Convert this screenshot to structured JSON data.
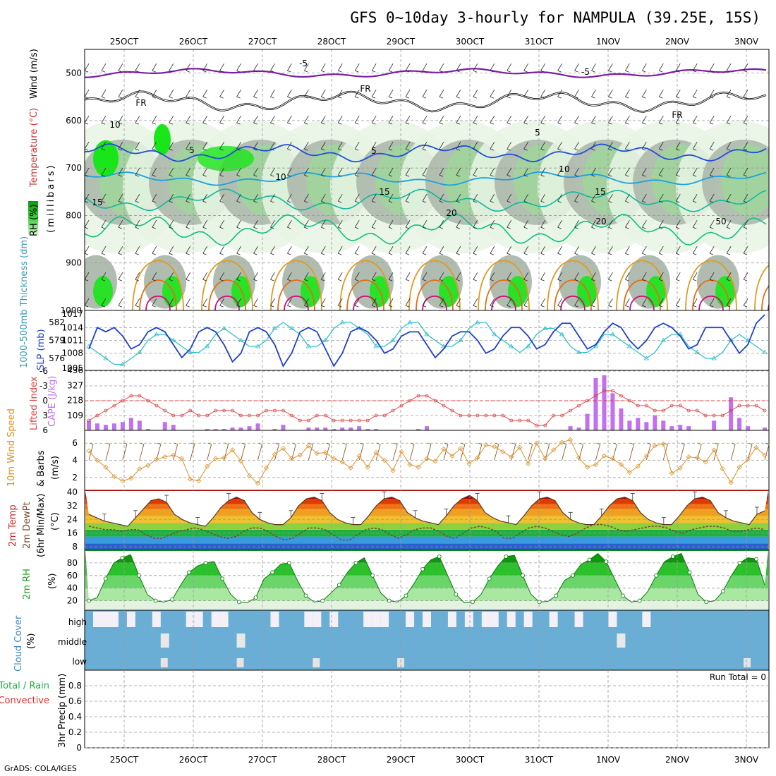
{
  "title": "GFS 0~10day 3-hourly for NAMPULA (39.25E, 15S)",
  "footer": "GrADS: COLA/IGES",
  "colors": {
    "rh_green_light": "#e7f5e4",
    "rh_green_mid": "#9fd69a",
    "rh_green_bright": "#19e619",
    "rh_gray": "#a9b5a8",
    "temp_purple": "#7b1fa2",
    "temp_blue": "#1f4fd8",
    "temp_skyblue": "#1ea0e0",
    "temp_teal": "#10b8a0",
    "temp_green": "#10c080",
    "temp_orange": "#e09a20",
    "temp_darkorange": "#e07010",
    "temp_magenta": "#d0107a",
    "slp_blue": "#1f3fd0",
    "thick_cyan": "#30c0c8",
    "lifted_red": "#e04040",
    "cape_purple": "#c070f0",
    "wind_orange": "#e0902a",
    "barb_brown": "#8b5a2b",
    "rh2m_green": "#20b020",
    "cloud_blue": "#6aaed6",
    "cloud_white": "#f4f0f8"
  },
  "chart_data": [
    {
      "type": "heatmap",
      "panel": "upper_air",
      "x": [
        "25OCT",
        "26OCT",
        "27OCT",
        "28OCT",
        "29OCT",
        "30OCT",
        "31OCT",
        "1NOV",
        "2NOV",
        "3NOV"
      ],
      "y_ticks": [
        500,
        600,
        700,
        800,
        900,
        1000
      ],
      "ylim": [
        1000,
        450
      ],
      "ylabels": [
        "RH (%)",
        "Temperature (°C)",
        "Wind (m/s)",
        "(millibars)"
      ],
      "contour_labels": [
        "-5",
        "FR",
        "5",
        "10",
        "15",
        "20",
        "10",
        "50"
      ],
      "series": [
        {
          "name": "-5",
          "level_mb": 500
        },
        {
          "name": "FR",
          "level_mb": 560
        },
        {
          "name": "5",
          "level_mb": 670
        },
        {
          "name": "10",
          "level_mb": 722
        },
        {
          "name": "15",
          "level_mb": 768
        },
        {
          "name": "20",
          "level_mb": 830
        }
      ]
    },
    {
      "type": "line",
      "panel": "slp_thickness",
      "ylabels": [
        "1000-500mb Thickness (dm)",
        "SLP (mb)"
      ],
      "left_ticks": [
        576,
        579,
        582
      ],
      "right_ticks": [
        1008,
        1011,
        1014
      ],
      "right_ticks_partial": [
        "1017",
        "1005"
      ],
      "series": [
        {
          "name": "SLP (mb)",
          "values": [
            1009,
            1014,
            1013,
            1014,
            1012,
            1009,
            1010,
            1013,
            1014,
            1013,
            1010,
            1007,
            1009,
            1013,
            1014,
            1013,
            1010,
            1006,
            1008,
            1013,
            1014,
            1013,
            1010,
            1005,
            1008,
            1013,
            1014,
            1013,
            1009,
            1005,
            1008,
            1013,
            1014,
            1013,
            1011,
            1008,
            1009,
            1012,
            1013,
            1013,
            1010,
            1007,
            1009,
            1012,
            1013,
            1013,
            1011,
            1008,
            1009,
            1012,
            1014,
            1014,
            1012,
            1009,
            1010,
            1013,
            1015,
            1015,
            1012,
            1009,
            1010,
            1013,
            1015,
            1014,
            1011,
            1009,
            1011,
            1014,
            1015,
            1014,
            1012,
            1009,
            1010,
            1014,
            1014,
            1014,
            1011,
            1008,
            1010,
            1015,
            1017
          ]
        },
        {
          "name": "Thickness (dm)",
          "values": [
            578,
            577,
            576,
            575,
            575,
            576,
            577,
            579,
            580,
            580,
            579,
            578,
            577,
            577,
            578,
            580,
            581,
            580,
            579,
            578,
            578,
            579,
            581,
            582,
            581,
            580,
            578,
            578,
            579,
            581,
            582,
            582,
            581,
            580,
            578,
            578,
            579,
            581,
            582,
            582,
            580,
            579,
            578,
            578,
            579,
            581,
            582,
            582,
            580,
            579,
            578,
            577,
            578,
            580,
            581,
            581,
            580,
            578,
            577,
            577,
            578,
            580,
            580,
            579,
            578,
            577,
            576,
            577,
            579,
            580,
            580,
            578,
            577,
            576,
            576,
            577,
            579,
            580,
            579,
            578,
            577
          ]
        }
      ]
    },
    {
      "type": "bar",
      "panel": "lifted_cape",
      "ylabels": [
        "Lifted Index",
        "CAPE (J/kg)"
      ],
      "left_ticks": [
        -6,
        -3,
        0,
        3,
        6
      ],
      "right_ticks": [
        109,
        218,
        327,
        436
      ],
      "series": [
        {
          "name": "Lifted Index",
          "values": [
            4,
            3,
            2,
            1,
            0,
            -1,
            -1,
            0,
            1,
            2,
            3,
            3,
            2,
            3,
            3,
            2,
            2,
            2,
            3,
            3,
            3,
            2,
            2,
            2,
            3,
            4,
            4,
            3,
            3,
            4,
            4,
            4,
            4,
            4,
            3,
            3,
            2,
            1,
            0,
            -1,
            -1,
            0,
            1,
            2,
            3,
            3,
            3,
            3,
            3,
            3,
            4,
            4,
            4,
            5,
            5,
            3,
            3,
            2,
            1,
            0,
            -1,
            -2,
            -2,
            -1,
            0,
            1,
            1,
            2,
            2,
            1,
            1,
            2,
            2,
            3,
            3,
            3,
            2,
            1,
            1,
            1,
            2
          ]
        },
        {
          "name": "CAPE (J/kg)",
          "values": [
            70,
            50,
            40,
            50,
            60,
            90,
            70,
            10,
            0,
            60,
            40,
            0,
            0,
            0,
            10,
            10,
            10,
            20,
            20,
            30,
            50,
            0,
            10,
            40,
            0,
            0,
            20,
            20,
            20,
            10,
            20,
            20,
            30,
            10,
            10,
            0,
            0,
            0,
            0,
            10,
            30,
            0,
            0,
            0,
            0,
            0,
            0,
            0,
            0,
            0,
            0,
            0,
            0,
            0,
            0,
            0,
            0,
            30,
            20,
            120,
            380,
            400,
            270,
            160,
            70,
            90,
            60,
            110,
            70,
            30,
            40,
            30,
            0,
            0,
            70,
            0,
            240,
            90,
            30,
            0,
            20
          ]
        }
      ]
    },
    {
      "type": "line",
      "panel": "wind10m",
      "ylabels": [
        "10m Wind Speed",
        "& Barbs",
        "(m/s)"
      ],
      "y_ticks": [
        2,
        4,
        6
      ],
      "series": [
        {
          "name": "10m Wind Speed",
          "values": [
            5.1,
            4.0,
            3.2,
            2.1,
            1.6,
            1.9,
            3.0,
            3.4,
            4.1,
            4.4,
            4.6,
            4.2,
            1.8,
            1.6,
            3.3,
            4.2,
            4.3,
            5.2,
            3.9,
            2.2,
            1.3,
            3.1,
            4.7,
            5.4,
            4.2,
            4.6,
            5.7,
            4.8,
            4.9,
            4.2,
            3.8,
            3.1,
            4.5,
            3.2,
            4.9,
            4.0,
            2.8,
            5.0,
            3.5,
            3.2,
            4.2,
            3.9,
            5.3,
            4.5,
            5.4,
            3.6,
            4.3,
            5.8,
            5.6,
            5.0,
            4.4,
            5.5,
            3.6,
            6.0,
            4.2,
            5.2,
            6.1,
            6.4,
            4.3,
            3.2,
            3.5,
            4.5,
            4.2,
            3.5,
            2.6,
            3.3,
            4.5,
            5.7,
            5.9,
            2.5,
            3.1,
            4.4,
            4.3,
            3.8,
            5.2,
            3.0,
            1.4,
            3.2,
            4.1,
            5.5,
            4.6
          ]
        }
      ]
    },
    {
      "type": "area",
      "panel": "temp2m",
      "ylabels": [
        "2m Temp",
        "2m DewPt",
        "(6hr Min/Max)",
        "(°C)"
      ],
      "y_ticks": [
        8,
        16,
        24,
        32,
        40
      ],
      "series": [
        {
          "name": "2m Temp",
          "values": [
            27,
            25,
            23,
            22,
            21,
            20,
            25,
            30,
            35,
            36,
            34,
            27,
            24,
            22,
            21,
            20,
            25,
            31,
            35,
            37,
            35,
            28,
            24,
            22,
            21,
            21,
            25,
            32,
            36,
            37,
            35,
            28,
            24,
            22,
            21,
            21,
            26,
            32,
            36,
            37,
            35,
            28,
            25,
            23,
            22,
            21,
            26,
            32,
            36,
            38,
            35,
            28,
            25,
            23,
            22,
            21,
            26,
            32,
            36,
            37,
            35,
            28,
            24,
            22,
            21,
            21,
            26,
            32,
            36,
            37,
            35,
            28,
            24,
            22,
            21,
            21,
            26,
            32,
            36,
            37,
            35,
            28,
            25,
            23,
            22,
            21,
            27,
            29
          ]
        },
        {
          "name": "2m DewPt",
          "values": [
            20,
            19,
            18,
            18,
            17,
            18,
            18,
            15,
            13,
            13,
            15,
            17,
            18,
            19,
            18,
            16,
            14,
            13,
            14,
            17,
            19,
            19,
            17,
            14,
            12,
            13,
            16,
            19,
            19,
            18,
            15,
            12,
            12,
            15,
            18,
            19,
            18,
            15,
            13,
            15,
            18,
            19,
            19,
            17,
            14,
            13,
            16,
            19,
            20,
            19,
            17,
            13,
            13,
            16,
            19,
            20,
            19,
            17,
            15,
            14,
            16,
            19,
            21,
            21,
            20,
            18,
            17,
            18,
            19,
            20,
            20,
            19,
            17,
            16,
            18,
            19,
            20,
            20,
            19,
            17,
            17,
            18,
            19,
            18
          ]
        }
      ]
    },
    {
      "type": "area",
      "panel": "rh2m",
      "ylabels": [
        "2m RH",
        "(%)"
      ],
      "y_ticks": [
        20,
        40,
        60,
        80
      ],
      "series": [
        {
          "name": "2m RH",
          "values": [
            20,
            25,
            55,
            80,
            88,
            93,
            60,
            30,
            20,
            18,
            22,
            45,
            65,
            75,
            80,
            82,
            55,
            30,
            18,
            17,
            25,
            55,
            65,
            78,
            80,
            52,
            28,
            18,
            20,
            32,
            45,
            65,
            80,
            88,
            60,
            32,
            20,
            18,
            28,
            48,
            70,
            85,
            90,
            60,
            30,
            17,
            18,
            30,
            55,
            75,
            90,
            92,
            60,
            30,
            18,
            19,
            28,
            52,
            60,
            78,
            85,
            95,
            82,
            55,
            28,
            18,
            20,
            35,
            60,
            82,
            90,
            95,
            65,
            30,
            18,
            20,
            35,
            60,
            80,
            88,
            86,
            45
          ]
        }
      ]
    },
    {
      "type": "heatmap",
      "panel": "cloud_cover",
      "ylabels": [
        "Cloud Cover",
        "(%)"
      ],
      "y_categories": [
        "high",
        "middle",
        "low"
      ]
    },
    {
      "type": "bar",
      "panel": "precip",
      "ylabels": [
        "Total / Rain",
        "Convective",
        "3hr Precip (mm)"
      ],
      "y_ticks": [
        "0",
        "0.2",
        "0.4",
        "0.6",
        "0.8"
      ],
      "annotation": "Run Total = 0",
      "values": []
    }
  ]
}
